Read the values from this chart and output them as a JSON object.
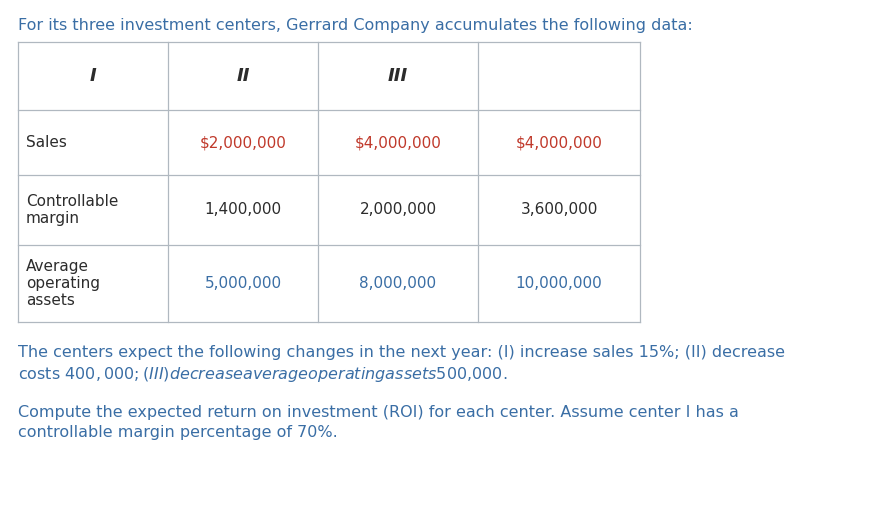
{
  "title_text": "For its three investment centers, Gerrard Company accumulates the following data:",
  "title_color": "#3a6ea5",
  "title_fontsize": 11.5,
  "bg_color": "#ffffff",
  "table_col_headers": [
    "",
    "I",
    "II",
    "III"
  ],
  "table_rows": [
    [
      "Sales",
      "$2,000,000",
      "$4,000,000",
      "$4,000,000"
    ],
    [
      "Controllable\nmargin",
      "1,400,000",
      "2,000,000",
      "3,600,000"
    ],
    [
      "Average\noperating\nassets",
      "5,000,000",
      "8,000,000",
      "10,000,000"
    ]
  ],
  "col_header_color": "#2c2c2c",
  "row_label_color": "#2c2c2c",
  "data_color_sales": "#c0392b",
  "data_color_ctrl": "#2c2c2c",
  "data_color_assets": "#3a6ea5",
  "table_line_color": "#b0b8c0",
  "paragraph1_line1": "The centers expect the following changes in the next year: (I) increase sales 15%; (II) decrease",
  "paragraph1_line2": "costs $400,000; (III) decrease average operating assets $500,000.",
  "paragraph2_line1": "Compute the expected return on investment (ROI) for each center. Assume center I has a",
  "paragraph2_line2": "controllable margin percentage of 70%.",
  "para_color": "#3a6ea5",
  "para_fontsize": 11.5
}
